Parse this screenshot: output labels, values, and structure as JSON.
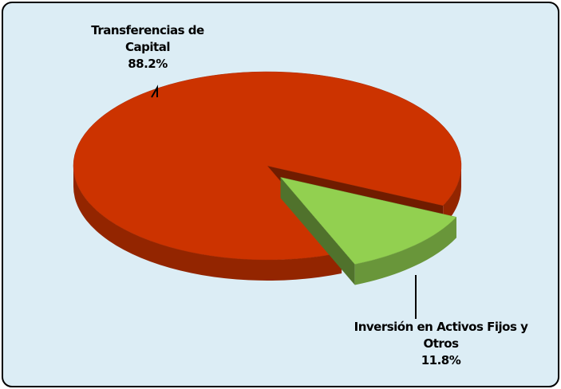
{
  "chart_data": {
    "type": "pie",
    "categories": [
      "Transferencias de Capital",
      "Inversión en Activos Fijos y Otros"
    ],
    "values": [
      88.2,
      11.8
    ],
    "value_labels": [
      "88.2%",
      "11.8%"
    ],
    "colors": [
      "#cc3300",
      "#92d050"
    ]
  }
}
